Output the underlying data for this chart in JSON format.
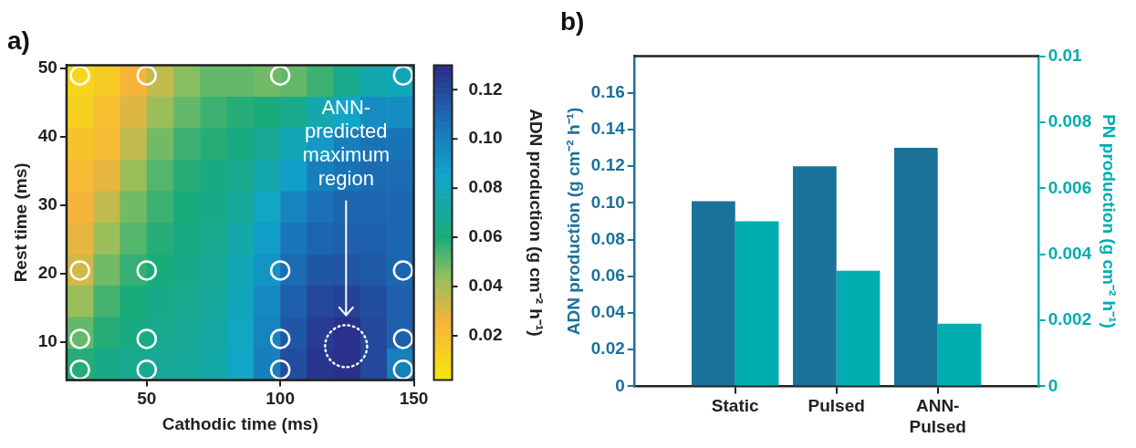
{
  "chart_data": [
    {
      "type": "heatmap",
      "title": "a)",
      "xlabel": "Cathodic time (ms)",
      "ylabel": "Rest time (ms)",
      "clabel": "ADN production (g cm⁻² h⁻¹)",
      "x": [
        25,
        35,
        45,
        55,
        65,
        75,
        85,
        95,
        105,
        115,
        125,
        135,
        145
      ],
      "y": [
        48.2,
        43.6,
        39,
        34.4,
        29.8,
        25.2,
        20.6,
        16,
        11.4,
        6.8
      ],
      "cells": [
        [
          0.01,
          0.015,
          0.025,
          0.035,
          0.045,
          0.05,
          0.05,
          0.048,
          0.05,
          0.055,
          0.065,
          0.075,
          0.08
        ],
        [
          0.012,
          0.02,
          0.03,
          0.042,
          0.05,
          0.055,
          0.058,
          0.06,
          0.065,
          0.075,
          0.085,
          0.095,
          0.095
        ],
        [
          0.018,
          0.022,
          0.035,
          0.048,
          0.055,
          0.058,
          0.062,
          0.068,
          0.078,
          0.09,
          0.1,
          0.105,
          0.105
        ],
        [
          0.022,
          0.028,
          0.042,
          0.052,
          0.058,
          0.062,
          0.066,
          0.075,
          0.088,
          0.1,
          0.105,
          0.108,
          0.108
        ],
        [
          0.025,
          0.035,
          0.048,
          0.055,
          0.06,
          0.064,
          0.07,
          0.082,
          0.098,
          0.106,
          0.11,
          0.11,
          0.11
        ],
        [
          0.028,
          0.042,
          0.052,
          0.058,
          0.062,
          0.066,
          0.074,
          0.088,
          0.104,
          0.11,
          0.112,
          0.112,
          0.11
        ],
        [
          0.032,
          0.048,
          0.056,
          0.06,
          0.064,
          0.068,
          0.078,
          0.092,
          0.108,
          0.115,
          0.116,
          0.114,
          0.11
        ],
        [
          0.042,
          0.054,
          0.06,
          0.064,
          0.066,
          0.07,
          0.08,
          0.096,
          0.112,
          0.12,
          0.122,
          0.118,
          0.112
        ],
        [
          0.05,
          0.058,
          0.062,
          0.066,
          0.068,
          0.072,
          0.082,
          0.098,
          0.115,
          0.124,
          0.128,
          0.12,
          0.112
        ],
        [
          0.058,
          0.064,
          0.066,
          0.068,
          0.07,
          0.074,
          0.083,
          0.1,
          0.118,
          0.126,
          0.128,
          0.12,
          0.1
        ]
      ],
      "clim": [
        0.002,
        0.13
      ],
      "cticks": [
        0.02,
        0.04,
        0.06,
        0.08,
        {
          "value": 0.1,
          "label": "0.10"
        },
        0.12
      ],
      "xlim": [
        20,
        150
      ],
      "xticks": [
        50,
        100,
        150
      ],
      "ylim": [
        4.5,
        50.5
      ],
      "yticks": [
        10,
        20,
        30,
        40,
        50
      ],
      "series": [
        {
          "type": "scatter",
          "color": "#ffffff",
          "x": [
            25,
            50,
            100,
            146,
            25,
            50,
            100,
            146,
            25,
            50,
            100,
            146,
            25,
            50,
            100,
            146
          ],
          "values": [
            49,
            49,
            49,
            49,
            20.5,
            20.5,
            20.5,
            20.5,
            10.5,
            10.5,
            10.5,
            10.5,
            6,
            6,
            6,
            6
          ]
        }
      ],
      "marker": "circle",
      "grid": false,
      "annotations": [
        "ANN-predicted maximum region"
      ]
    },
    {
      "type": "bar",
      "title": "b)",
      "categories": [
        null,
        "Static",
        "Pulsed",
        "ANN-Pulsed",
        null
      ],
      "ylabel": "ADN production (g cm⁻² h⁻¹)",
      "y2label": "PN production (g cm⁻² h⁻¹)",
      "series": [
        {
          "color": "#1b7299",
          "values": [
            null,
            0.101,
            0.12,
            0.13,
            null
          ]
        },
        {
          "color": "#00adb0",
          "axis": "y2",
          "values": [
            null,
            0.005,
            0.0035,
            0.0019,
            null
          ]
        }
      ],
      "ylim": [
        0,
        0.18
      ],
      "yticks": [
        0,
        0.02,
        0.04,
        0.06,
        0.08,
        {
          "value": 0.1,
          "label": "0.10"
        },
        0.12,
        0.14,
        0.16
      ],
      "y2lim": [
        0,
        0.01
      ],
      "y2ticks": [
        0,
        0.002,
        0.004,
        0.006,
        0.008,
        0.01
      ],
      "grid": false,
      "legend": false
    }
  ]
}
